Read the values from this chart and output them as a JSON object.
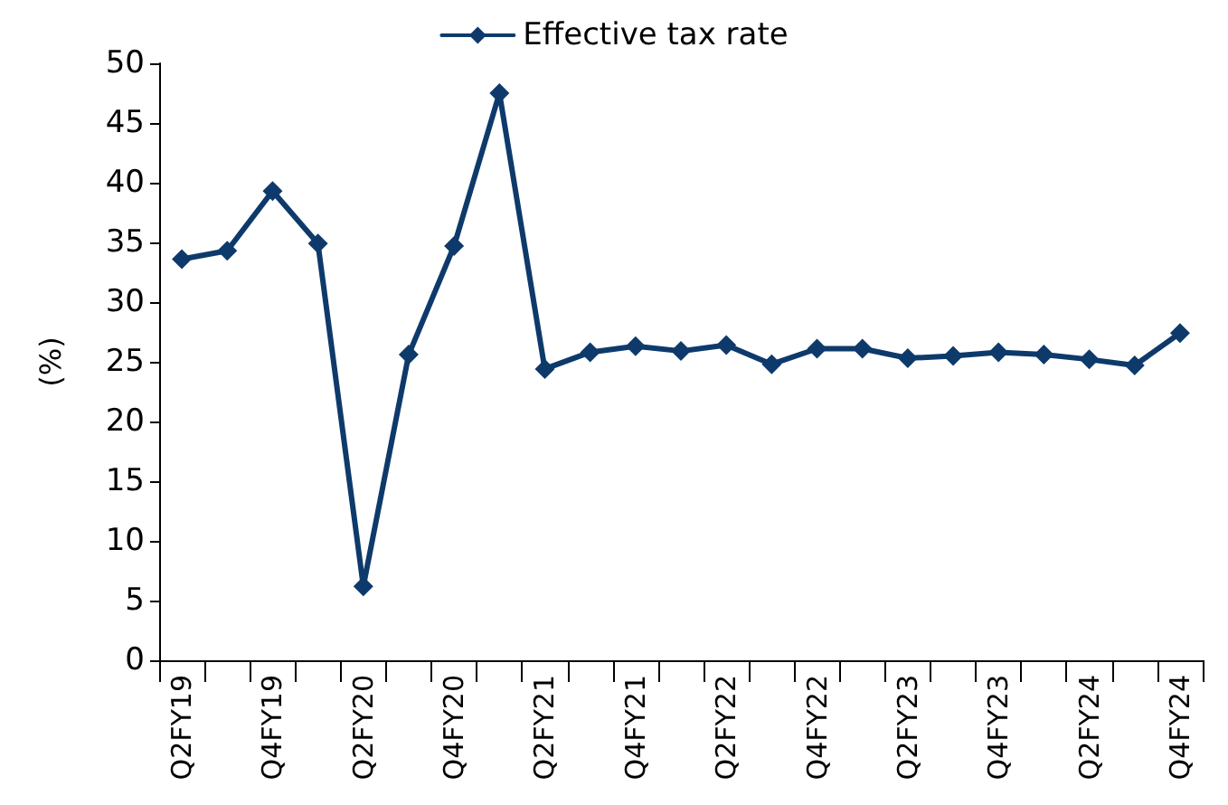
{
  "chart_data": {
    "type": "line",
    "ylabel": "(%)",
    "categories": [
      "Q2FY19",
      null,
      "Q4FY19",
      null,
      "Q2FY20",
      null,
      "Q4FY20",
      null,
      "Q2FY21",
      null,
      "Q4FY21",
      null,
      "Q2FY22",
      null,
      "Q4FY22",
      null,
      "Q2FY23",
      null,
      "Q4FY23",
      null,
      "Q2FY24",
      null,
      "Q4FY24"
    ],
    "series": [
      {
        "name": "Effective tax rate",
        "color": "#0e3a6b",
        "values": [
          33.6,
          34.3,
          39.3,
          34.9,
          6.2,
          25.6,
          34.7,
          47.5,
          24.4,
          25.8,
          26.3,
          25.9,
          26.4,
          24.8,
          26.1,
          26.1,
          25.3,
          25.5,
          25.8,
          25.6,
          25.2,
          24.7,
          27.4
        ]
      }
    ],
    "ylim": [
      0,
      50
    ],
    "yticks": [
      0,
      5,
      10,
      15,
      20,
      25,
      30,
      35,
      40,
      45,
      50
    ],
    "grid": false,
    "legend": "top",
    "marker": "diamond",
    "line_style": "solid"
  }
}
